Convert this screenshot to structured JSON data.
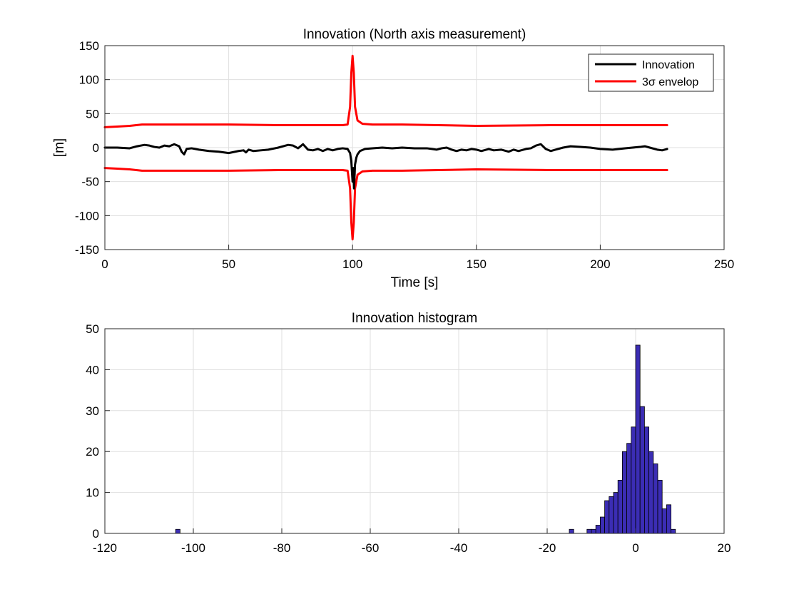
{
  "chart_data": [
    {
      "type": "line",
      "title": "Innovation (North axis measurement)",
      "xlabel": "Time [s]",
      "ylabel": "[m]",
      "xlim": [
        0,
        250
      ],
      "ylim": [
        -150,
        150
      ],
      "xticks": [
        0,
        50,
        100,
        150,
        200,
        250
      ],
      "yticks": [
        -150,
        -100,
        -50,
        0,
        50,
        100,
        150
      ],
      "xtick_labels": [
        "0",
        "50",
        "100",
        "150",
        "200",
        "250"
      ],
      "ytick_labels": [
        "-150",
        "-100",
        "-50",
        "0",
        "50",
        "100",
        "150"
      ],
      "grid": true,
      "legend": {
        "placement": "top-right",
        "entries": [
          {
            "label": "Innovation",
            "color": "#000000"
          },
          {
            "label": "3σ envelop",
            "color": "#ff0000"
          }
        ]
      },
      "series": [
        {
          "name": "Innovation",
          "color": "#000000",
          "x": [
            0,
            5,
            10,
            13,
            16,
            18,
            20,
            22,
            24,
            26,
            28,
            30,
            31,
            32,
            33,
            35,
            38,
            42,
            46,
            50,
            54,
            56,
            57,
            58,
            60,
            63,
            66,
            70,
            72,
            74,
            76,
            78,
            80,
            82,
            84,
            86,
            88,
            90,
            92,
            94,
            96,
            98,
            99,
            99.5,
            100,
            100.3,
            100.6,
            101,
            101.5,
            102,
            103,
            105,
            108,
            112,
            116,
            120,
            125,
            130,
            134,
            136,
            138,
            140,
            142,
            144,
            146,
            148,
            150,
            152,
            155,
            157,
            160,
            163,
            165,
            167,
            170,
            172,
            174,
            176,
            178,
            180,
            182,
            185,
            188,
            192,
            196,
            200,
            205,
            210,
            213,
            216,
            218,
            220,
            223,
            225,
            227
          ],
          "y": [
            0,
            0,
            -1,
            2,
            4,
            3,
            1,
            0,
            3,
            2,
            5,
            2,
            -6,
            -10,
            -2,
            -1,
            -3,
            -5,
            -6,
            -8,
            -5,
            -4,
            -7,
            -3,
            -5,
            -4,
            -3,
            0,
            2,
            4,
            3,
            -1,
            5,
            -3,
            -4,
            -2,
            -5,
            -2,
            -4,
            -2,
            -1,
            -2,
            -8,
            -20,
            -50,
            -30,
            -60,
            -25,
            -15,
            -10,
            -5,
            -2,
            -1,
            0,
            -1,
            0,
            -1,
            -1,
            -3,
            -1,
            0,
            -3,
            -5,
            -3,
            -4,
            -2,
            -3,
            -5,
            -2,
            -4,
            -3,
            -6,
            -3,
            -5,
            -2,
            -1,
            3,
            5,
            -2,
            -5,
            -3,
            0,
            2,
            1,
            0,
            -2,
            -3,
            -1,
            0,
            1,
            2,
            0,
            -3,
            -4,
            -2
          ],
          "line_width": 3
        },
        {
          "name": "3σ envelop",
          "color": "#ff0000",
          "x": [
            0,
            5,
            10,
            15,
            20,
            30,
            50,
            70,
            90,
            96,
            98,
            99,
            99.5,
            100,
            100.5,
            101,
            102,
            104,
            108,
            120,
            150,
            180,
            200,
            227
          ],
          "y": [
            30,
            31,
            32,
            34,
            34,
            34,
            34,
            33,
            33,
            33,
            34,
            60,
            110,
            135,
            110,
            60,
            40,
            35,
            34,
            34,
            32,
            33,
            33,
            33
          ],
          "mirror_negative": true,
          "line_width": 3
        }
      ]
    },
    {
      "type": "bar",
      "title": "Innovation histogram",
      "xlim": [
        -120,
        20
      ],
      "ylim": [
        0,
        50
      ],
      "xticks": [
        -120,
        -100,
        -80,
        -60,
        -40,
        -20,
        0,
        20
      ],
      "yticks": [
        0,
        10,
        20,
        30,
        40,
        50
      ],
      "xtick_labels": [
        "-120",
        "-100",
        "-80",
        "-60",
        "-40",
        "-20",
        "0",
        "20"
      ],
      "ytick_labels": [
        "0",
        "10",
        "20",
        "30",
        "40",
        "50"
      ],
      "grid": true,
      "bar_color": "#3b2db4",
      "bar_edge_color": "#000000",
      "bin_width": 1,
      "bins_start": -104,
      "counts": [
        1,
        0,
        0,
        0,
        0,
        0,
        0,
        0,
        0,
        0,
        0,
        0,
        0,
        0,
        0,
        0,
        0,
        0,
        0,
        0,
        0,
        0,
        0,
        0,
        0,
        0,
        0,
        0,
        0,
        0,
        0,
        0,
        0,
        0,
        0,
        0,
        0,
        0,
        0,
        0,
        0,
        0,
        0,
        0,
        0,
        0,
        0,
        0,
        0,
        0,
        0,
        0,
        0,
        0,
        0,
        0,
        0,
        0,
        0,
        0,
        0,
        0,
        0,
        0,
        0,
        0,
        0,
        0,
        0,
        0,
        0,
        0,
        0,
        0,
        0,
        0,
        0,
        0,
        0,
        0,
        0,
        0,
        0,
        0,
        0,
        0,
        0,
        0,
        0,
        1,
        0,
        0,
        0,
        1,
        1,
        2,
        4,
        8,
        9,
        10,
        13,
        20,
        22,
        26,
        46,
        31,
        26,
        20,
        17,
        13,
        6,
        7,
        1
      ]
    }
  ]
}
